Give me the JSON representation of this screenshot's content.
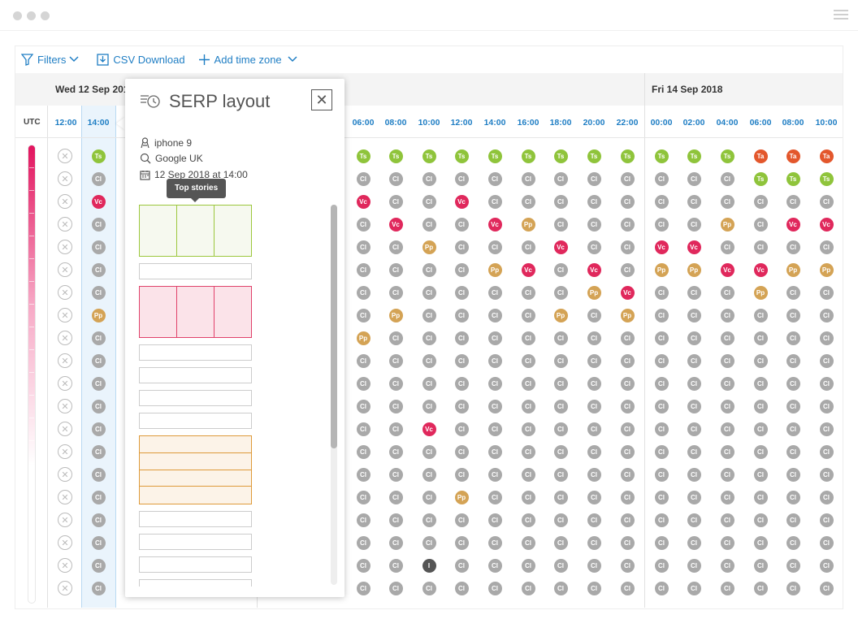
{
  "colors": {
    "Ts": "#8fc43b",
    "Cl": "#a9a9a9",
    "Vc": "#e0285c",
    "Pp": "#d4a355",
    "Ta": "#e3572c",
    "I": "#555555",
    "accent": "#1f7ec4"
  },
  "toolbar": {
    "filters": "Filters",
    "csv": "CSV Download",
    "add_tz": "Add time zone"
  },
  "days": [
    "Wed 12 Sep 2018",
    "Fri 14 Sep 2018"
  ],
  "timezone": "UTC",
  "left_times": [
    "12:00",
    "14:00"
  ],
  "right_times": [
    "06:00",
    "08:00",
    "10:00",
    "12:00",
    "14:00",
    "16:00",
    "18:00",
    "20:00",
    "22:00",
    "00:00",
    "02:00",
    "04:00",
    "06:00",
    "08:00",
    "10:00"
  ],
  "popup": {
    "title": "SERP layout",
    "device": "iphone 9",
    "engine": "Google UK",
    "date": "12 Sep 2018 at 14:00",
    "tooltip": "Top stories"
  },
  "grid": {
    "col12": [
      "x",
      "x",
      "x",
      "x",
      "x",
      "x",
      "x",
      "x",
      "x",
      "x",
      "x",
      "x",
      "x",
      "x",
      "x",
      "x",
      "x",
      "x",
      "x",
      "x"
    ],
    "col14": [
      "Ts",
      "Cl",
      "Vc",
      "Cl",
      "Cl",
      "Cl",
      "Cl",
      "Pp",
      "Cl",
      "Cl",
      "Cl",
      "Cl",
      "Cl",
      "Cl",
      "Cl",
      "Cl",
      "Cl",
      "Cl",
      "Cl",
      "Cl"
    ],
    "right": [
      [
        "Ts",
        "Ts",
        "Ts",
        "Ts",
        "Ts",
        "Ts",
        "Ts",
        "Ts",
        "Ts",
        "Ts",
        "Ts",
        "Ts",
        "Ta",
        "Ta",
        "Ta"
      ],
      [
        "Cl",
        "Cl",
        "Cl",
        "Cl",
        "Cl",
        "Cl",
        "Cl",
        "Cl",
        "Cl",
        "Cl",
        "Cl",
        "Cl",
        "Ts",
        "Ts",
        "Ts"
      ],
      [
        "Vc",
        "Cl",
        "Cl",
        "Vc",
        "Cl",
        "Cl",
        "Cl",
        "Cl",
        "Cl",
        "Cl",
        "Cl",
        "Cl",
        "Cl",
        "Cl",
        "Cl"
      ],
      [
        "Cl",
        "Vc",
        "Cl",
        "Cl",
        "Vc",
        "Pp",
        "Cl",
        "Cl",
        "Cl",
        "Cl",
        "Cl",
        "Pp",
        "Cl",
        "Vc",
        "Vc"
      ],
      [
        "Cl",
        "Cl",
        "Pp",
        "Cl",
        "Cl",
        "Cl",
        "Vc",
        "Cl",
        "Cl",
        "Vc",
        "Vc",
        "Cl",
        "Cl",
        "Cl",
        "Cl"
      ],
      [
        "Cl",
        "Cl",
        "Cl",
        "Cl",
        "Pp",
        "Vc",
        "Cl",
        "Vc",
        "Cl",
        "Pp",
        "Pp",
        "Vc",
        "Vc",
        "Pp",
        "Pp"
      ],
      [
        "Cl",
        "Cl",
        "Cl",
        "Cl",
        "Cl",
        "Cl",
        "Cl",
        "Pp",
        "Vc",
        "Cl",
        "Cl",
        "Cl",
        "Pp",
        "Cl",
        "Cl"
      ],
      [
        "Cl",
        "Pp",
        "Cl",
        "Cl",
        "Cl",
        "Cl",
        "Pp",
        "Cl",
        "Pp",
        "Cl",
        "Cl",
        "Cl",
        "Cl",
        "Cl",
        "Cl"
      ],
      [
        "Pp",
        "Cl",
        "Cl",
        "Cl",
        "Cl",
        "Cl",
        "Cl",
        "Cl",
        "Cl",
        "Cl",
        "Cl",
        "Cl",
        "Cl",
        "Cl",
        "Cl"
      ],
      [
        "Cl",
        "Cl",
        "Cl",
        "Cl",
        "Cl",
        "Cl",
        "Cl",
        "Cl",
        "Cl",
        "Cl",
        "Cl",
        "Cl",
        "Cl",
        "Cl",
        "Cl"
      ],
      [
        "Cl",
        "Cl",
        "Cl",
        "Cl",
        "Cl",
        "Cl",
        "Cl",
        "Cl",
        "Cl",
        "Cl",
        "Cl",
        "Cl",
        "Cl",
        "Cl",
        "Cl"
      ],
      [
        "Cl",
        "Cl",
        "Cl",
        "Cl",
        "Cl",
        "Cl",
        "Cl",
        "Cl",
        "Cl",
        "Cl",
        "Cl",
        "Cl",
        "Cl",
        "Cl",
        "Cl"
      ],
      [
        "Cl",
        "Cl",
        "Vc",
        "Cl",
        "Cl",
        "Cl",
        "Cl",
        "Cl",
        "Cl",
        "Cl",
        "Cl",
        "Cl",
        "Cl",
        "Cl",
        "Cl"
      ],
      [
        "Cl",
        "Cl",
        "Cl",
        "Cl",
        "Cl",
        "Cl",
        "Cl",
        "Cl",
        "Cl",
        "Cl",
        "Cl",
        "Cl",
        "Cl",
        "Cl",
        "Cl"
      ],
      [
        "Cl",
        "Cl",
        "Cl",
        "Cl",
        "Cl",
        "Cl",
        "Cl",
        "Cl",
        "Cl",
        "Cl",
        "Cl",
        "Cl",
        "Cl",
        "Cl",
        "Cl"
      ],
      [
        "Cl",
        "Cl",
        "Cl",
        "Pp",
        "Cl",
        "Cl",
        "Cl",
        "Cl",
        "Cl",
        "Cl",
        "Cl",
        "Cl",
        "Cl",
        "Cl",
        "Cl"
      ],
      [
        "Cl",
        "Cl",
        "Cl",
        "Cl",
        "Cl",
        "Cl",
        "Cl",
        "Cl",
        "Cl",
        "Cl",
        "Cl",
        "Cl",
        "Cl",
        "Cl",
        "Cl"
      ],
      [
        "Cl",
        "Cl",
        "Cl",
        "Cl",
        "Cl",
        "Cl",
        "Cl",
        "Cl",
        "Cl",
        "Cl",
        "Cl",
        "Cl",
        "Cl",
        "Cl",
        "Cl"
      ],
      [
        "Cl",
        "Cl",
        "I",
        "Cl",
        "Cl",
        "Cl",
        "Cl",
        "Cl",
        "Cl",
        "Cl",
        "Cl",
        "Cl",
        "Cl",
        "Cl",
        "Cl"
      ],
      [
        "Cl",
        "Cl",
        "Cl",
        "Cl",
        "Cl",
        "Cl",
        "Cl",
        "Cl",
        "Cl",
        "Cl",
        "Cl",
        "Cl",
        "Cl",
        "Cl",
        "Cl"
      ]
    ]
  },
  "serp_layout": [
    "green-3",
    "plain",
    "red-3",
    "plain",
    "plain",
    "plain",
    "plain",
    "orange-4",
    "plain",
    "plain",
    "plain",
    "plain"
  ]
}
